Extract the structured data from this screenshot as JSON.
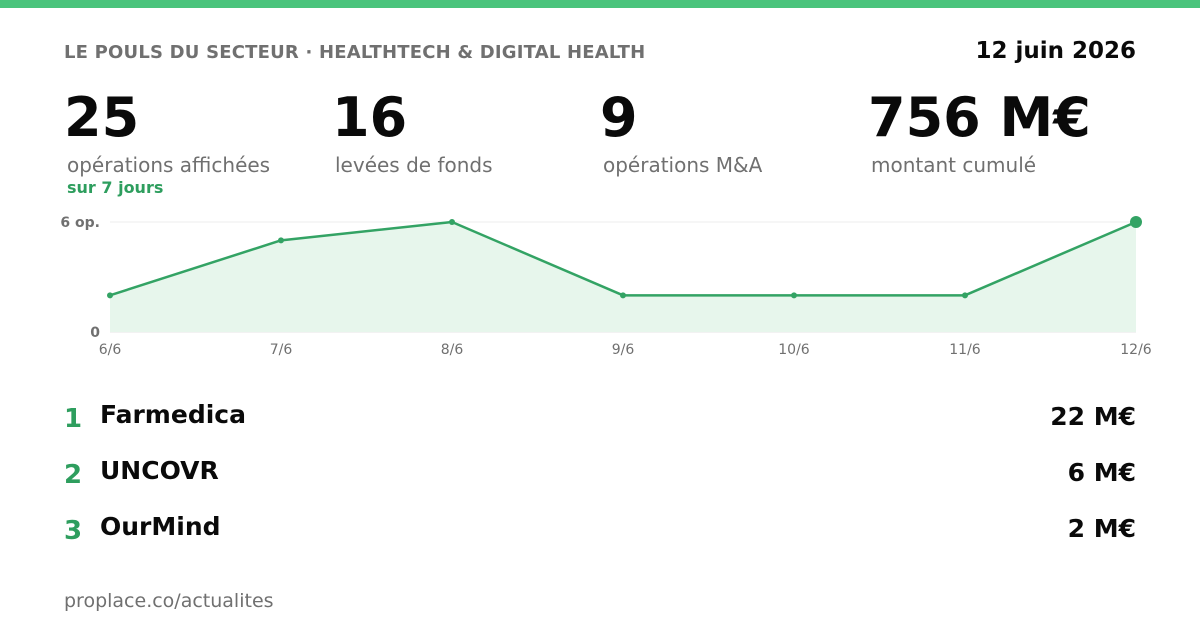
{
  "header": {
    "title": "LE POULS DU SECTEUR · HEALTHTECH & DIGITAL HEALTH",
    "date": "12 juin 2026"
  },
  "stats": [
    {
      "value": "25",
      "label": "opérations affichées",
      "note": "sur 7 jours"
    },
    {
      "value": "16",
      "label": "levées de fonds"
    },
    {
      "value": "9",
      "label": "opérations M&A"
    },
    {
      "value": "756 M€",
      "label": "montant cumulé"
    }
  ],
  "chart_data": {
    "type": "area",
    "categories": [
      "6/6",
      "7/6",
      "8/6",
      "9/6",
      "10/6",
      "11/6",
      "12/6"
    ],
    "values": [
      2,
      5,
      6,
      2,
      2,
      2,
      6
    ],
    "ylim": [
      0,
      6
    ],
    "y_tick_labels": [
      "0",
      "6 op."
    ],
    "grid": false,
    "line_color": "#33a364",
    "fill_color": "#e7f6ec"
  },
  "top_deals": [
    {
      "rank": "1",
      "name": "Farmedica",
      "amount": "22 M€"
    },
    {
      "rank": "2",
      "name": "UNCOVR",
      "amount": "6 M€"
    },
    {
      "rank": "3",
      "name": "OurMind",
      "amount": "2 M€"
    }
  ],
  "footer": {
    "url": "proplace.co/actualites"
  },
  "colors": {
    "accent": "#4ac47c",
    "accent_text": "#2e9e5e",
    "muted_text": "#707070"
  }
}
